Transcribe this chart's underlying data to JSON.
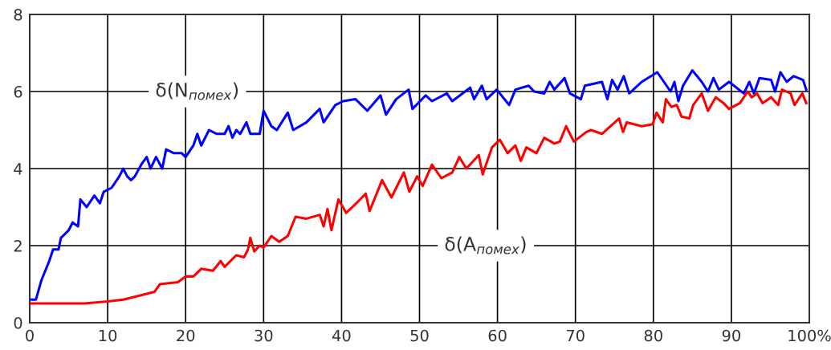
{
  "chart_data": {
    "type": "line",
    "xlim": [
      0,
      100
    ],
    "xticks": [
      0,
      10,
      20,
      30,
      40,
      50,
      60,
      70,
      80,
      90,
      {
        "value": 100,
        "label": "100%"
      }
    ],
    "ylim": [
      0,
      8
    ],
    "yticks": [
      0,
      2,
      4,
      6,
      8
    ],
    "grid": true,
    "line_style": "solid",
    "series": [
      {
        "name": "δ(N$_{помех}$)",
        "color": "#0000ff",
        "x": [
          0,
          0.8,
          1.5,
          2.5,
          3,
          3.7,
          4,
          5,
          5.5,
          6.2,
          6.5,
          7.3,
          8.3,
          9,
          9.5,
          10.5,
          11.5,
          12,
          12.5,
          13,
          13.5,
          14.3,
          15,
          15.5,
          16.2,
          17,
          17.5,
          18.5,
          19.5,
          20,
          21,
          21.5,
          22,
          23,
          24,
          25,
          25.5,
          26,
          26.5,
          27,
          27.8,
          28.3,
          29.5,
          30,
          31,
          31.7,
          33.1,
          33.8,
          35.5,
          37.2,
          37.7,
          39.2,
          40.2,
          41.8,
          43.3,
          45,
          45.7,
          47,
          48.6,
          49.1,
          50.8,
          51.6,
          53.5,
          54.2,
          56.5,
          57,
          58,
          58.6,
          59.9,
          61.5,
          62.3,
          64,
          64.7,
          66,
          66.7,
          67.3,
          68.6,
          69.3,
          70.7,
          71.2,
          73.4,
          74.1,
          74.7,
          75.4,
          76.2,
          76.9,
          78.5,
          80.5,
          82.2,
          82.7,
          83.2,
          83.8,
          85,
          86.2,
          87,
          87.7,
          88.4,
          89.7,
          91.6,
          92.3,
          92.9,
          93.6,
          95.1,
          95.6,
          96.3,
          97.1,
          98,
          99.2,
          99.6
        ],
        "values": [
          0.6,
          0.6,
          1.1,
          1.6,
          1.9,
          1.9,
          2.2,
          2.4,
          2.6,
          2.5,
          3.2,
          3.0,
          3.3,
          3.1,
          3.4,
          3.5,
          3.8,
          4.0,
          3.8,
          3.7,
          3.8,
          4.1,
          4.3,
          4.0,
          4.3,
          4.0,
          4.5,
          4.4,
          4.4,
          4.3,
          4.6,
          4.9,
          4.6,
          5.0,
          4.9,
          4.9,
          5.1,
          4.8,
          5.0,
          4.9,
          5.2,
          4.9,
          4.9,
          5.5,
          5.1,
          5.0,
          5.45,
          5.0,
          5.2,
          5.55,
          5.2,
          5.65,
          5.75,
          5.8,
          5.5,
          5.9,
          5.4,
          5.8,
          6.05,
          5.55,
          5.9,
          5.75,
          5.95,
          5.75,
          6.1,
          5.8,
          6.15,
          5.8,
          6.05,
          5.65,
          6.05,
          6.15,
          6.0,
          5.95,
          6.25,
          6.05,
          6.35,
          5.95,
          5.8,
          6.15,
          6.25,
          5.8,
          6.3,
          6.05,
          6.4,
          5.95,
          6.25,
          6.5,
          6.0,
          6.25,
          5.75,
          6.15,
          6.55,
          6.25,
          6.0,
          6.35,
          6.05,
          6.25,
          5.95,
          6.25,
          5.95,
          6.35,
          6.3,
          6.0,
          6.5,
          6.25,
          6.4,
          6.3,
          6.05
        ]
      },
      {
        "name": "δ(A$_{помех}$)",
        "color": "#ff0000",
        "x": [
          0,
          7,
          10,
          12,
          14,
          16,
          16.7,
          19,
          20,
          21,
          22,
          23.5,
          24.5,
          25,
          26.5,
          27.5,
          28,
          28.3,
          28.8,
          29.5,
          30,
          31,
          32,
          33.1,
          34.1,
          35.5,
          37.2,
          37.7,
          38.2,
          38.7,
          39.6,
          40.6,
          41.9,
          43.1,
          43.6,
          45.2,
          46.4,
          48,
          48.7,
          49.7,
          50.4,
          51.6,
          52.8,
          54.2,
          55.1,
          56,
          57.6,
          58.1,
          59.3,
          60.3,
          61.3,
          62.3,
          63,
          63.7,
          65,
          66,
          67.3,
          68,
          68.8,
          69.8,
          71.4,
          72,
          73.4,
          74.5,
          75.6,
          76.1,
          76.6,
          78.5,
          79.9,
          80.4,
          81.2,
          81.6,
          82.3,
          83,
          83.6,
          84.6,
          85.1,
          86.2,
          87,
          88,
          89,
          89.7,
          91.1,
          92.1,
          92.6,
          93.3,
          94,
          95.1,
          96,
          96.5,
          97.6,
          98.1,
          99.1,
          99.6
        ],
        "values": [
          0.5,
          0.5,
          0.55,
          0.6,
          0.7,
          0.8,
          1.0,
          1.05,
          1.2,
          1.2,
          1.4,
          1.35,
          1.6,
          1.45,
          1.75,
          1.7,
          1.9,
          2.2,
          1.85,
          2.0,
          1.95,
          2.25,
          2.1,
          2.25,
          2.75,
          2.7,
          2.8,
          2.5,
          2.95,
          2.4,
          3.2,
          2.85,
          3.1,
          3.35,
          2.9,
          3.7,
          3.25,
          3.9,
          3.4,
          3.8,
          3.55,
          4.1,
          3.75,
          3.9,
          4.3,
          4.0,
          4.35,
          3.85,
          4.55,
          4.75,
          4.4,
          4.6,
          4.2,
          4.55,
          4.4,
          4.8,
          4.65,
          4.7,
          5.1,
          4.7,
          4.95,
          5.0,
          4.9,
          5.1,
          5.3,
          4.95,
          5.2,
          5.1,
          5.15,
          5.45,
          5.2,
          5.8,
          5.6,
          5.65,
          5.35,
          5.3,
          5.65,
          5.95,
          5.5,
          5.85,
          5.7,
          5.55,
          5.7,
          6.0,
          5.85,
          5.95,
          5.7,
          5.85,
          5.65,
          6.05,
          5.95,
          5.65,
          5.95,
          5.7
        ]
      }
    ]
  }
}
